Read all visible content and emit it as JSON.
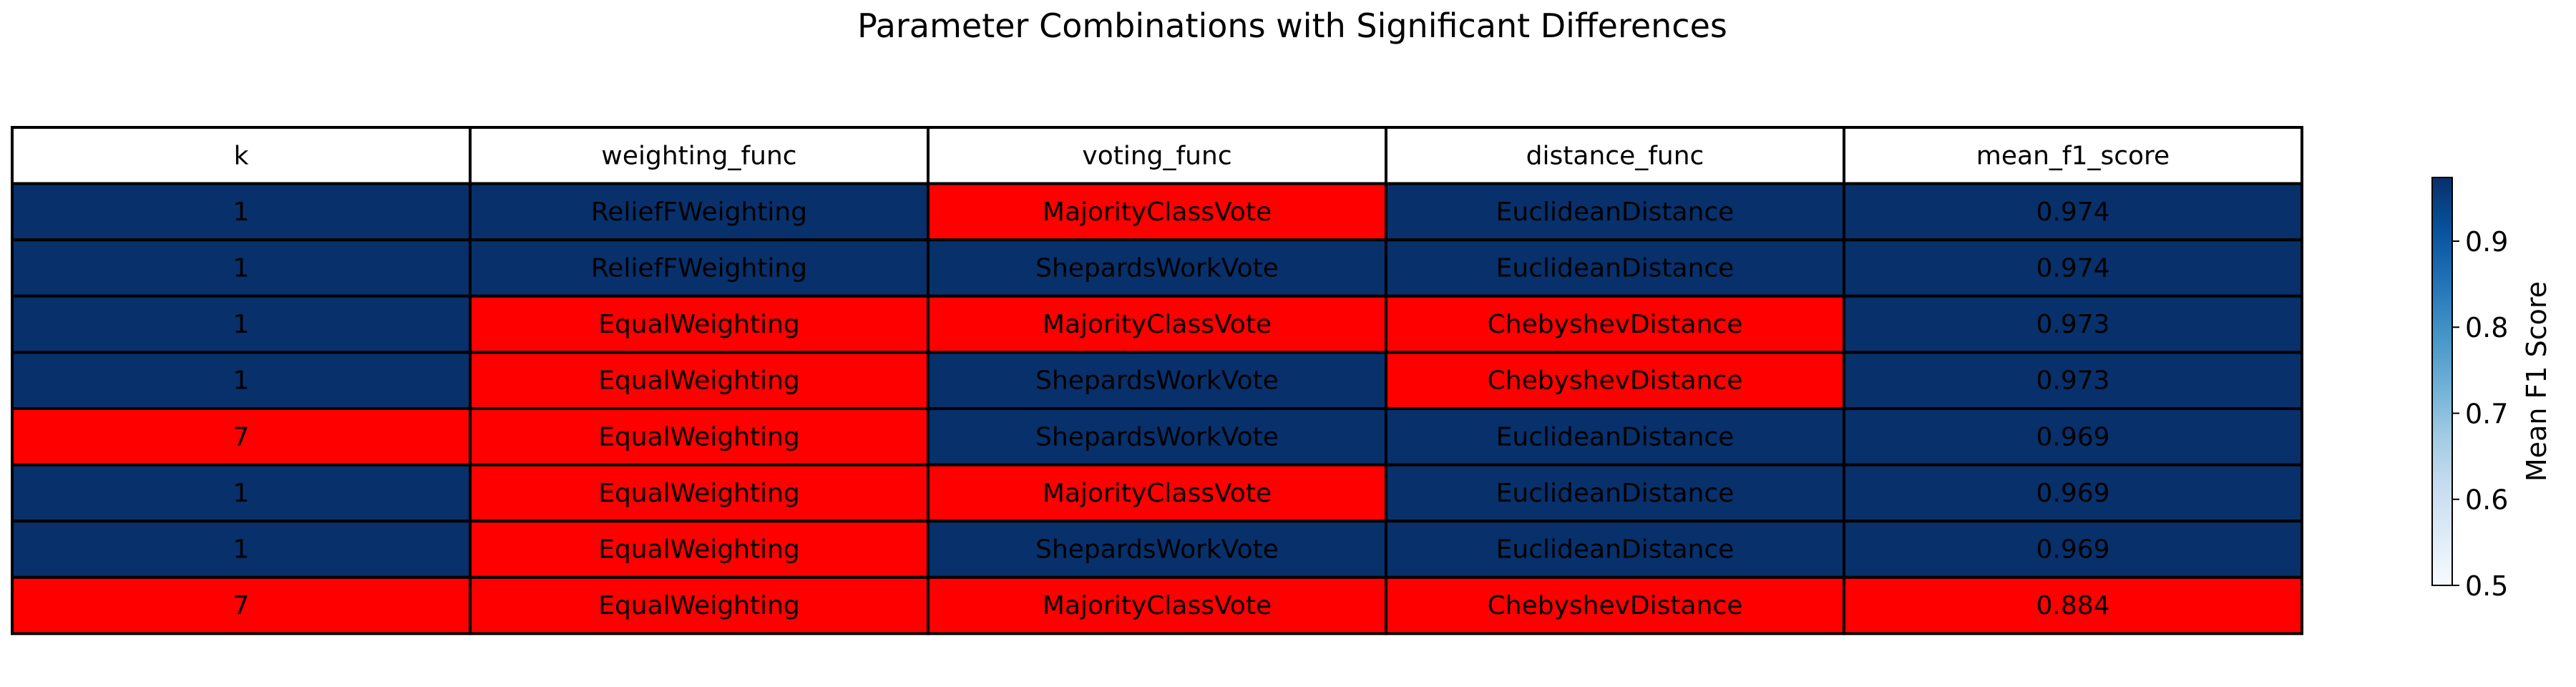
{
  "chart_data": {
    "type": "table",
    "title": "Parameter Combinations with Significant Differences",
    "columns": [
      "k",
      "weighting_func",
      "voting_func",
      "distance_func",
      "mean_f1_score"
    ],
    "rows": [
      {
        "cells": [
          "1",
          "ReliefFWeighting",
          "MajorityClassVote",
          "EuclideanDistance",
          "0.974"
        ],
        "mean_f1_score": 0.974,
        "highlight": [
          false,
          false,
          true,
          false,
          false
        ]
      },
      {
        "cells": [
          "1",
          "ReliefFWeighting",
          "ShepardsWorkVote",
          "EuclideanDistance",
          "0.974"
        ],
        "mean_f1_score": 0.974,
        "highlight": [
          false,
          false,
          false,
          false,
          false
        ]
      },
      {
        "cells": [
          "1",
          "EqualWeighting",
          "MajorityClassVote",
          "ChebyshevDistance",
          "0.973"
        ],
        "mean_f1_score": 0.973,
        "highlight": [
          false,
          true,
          true,
          true,
          false
        ]
      },
      {
        "cells": [
          "1",
          "EqualWeighting",
          "ShepardsWorkVote",
          "ChebyshevDistance",
          "0.973"
        ],
        "mean_f1_score": 0.973,
        "highlight": [
          false,
          true,
          false,
          true,
          false
        ]
      },
      {
        "cells": [
          "7",
          "EqualWeighting",
          "ShepardsWorkVote",
          "EuclideanDistance",
          "0.969"
        ],
        "mean_f1_score": 0.969,
        "highlight": [
          true,
          true,
          false,
          false,
          false
        ]
      },
      {
        "cells": [
          "1",
          "EqualWeighting",
          "MajorityClassVote",
          "EuclideanDistance",
          "0.969"
        ],
        "mean_f1_score": 0.969,
        "highlight": [
          false,
          true,
          true,
          false,
          false
        ]
      },
      {
        "cells": [
          "1",
          "EqualWeighting",
          "ShepardsWorkVote",
          "EuclideanDistance",
          "0.969"
        ],
        "mean_f1_score": 0.969,
        "highlight": [
          false,
          true,
          false,
          false,
          false
        ]
      },
      {
        "cells": [
          "7",
          "EqualWeighting",
          "MajorityClassVote",
          "ChebyshevDistance",
          "0.884"
        ],
        "mean_f1_score": 0.884,
        "highlight": [
          true,
          true,
          true,
          true,
          true
        ]
      }
    ],
    "colors": {
      "default_cell": "#08306b",
      "highlight_cell": "#ff0000",
      "header_cell": "#ffffff",
      "grid": "#000000",
      "text": "#000000"
    },
    "colorbar": {
      "label": "Mean F1 Score",
      "range": [
        0.5,
        0.974
      ],
      "ticks": [
        "0.5",
        "0.6",
        "0.7",
        "0.8",
        "0.9"
      ],
      "tick_values": [
        0.5,
        0.6,
        0.7,
        0.8,
        0.9
      ],
      "colormap": "Blues",
      "stops": [
        "#f7fbff",
        "#deebf7",
        "#c6dbef",
        "#9ecae1",
        "#6baed6",
        "#4292c6",
        "#2171b5",
        "#08519c",
        "#08306b"
      ]
    }
  }
}
